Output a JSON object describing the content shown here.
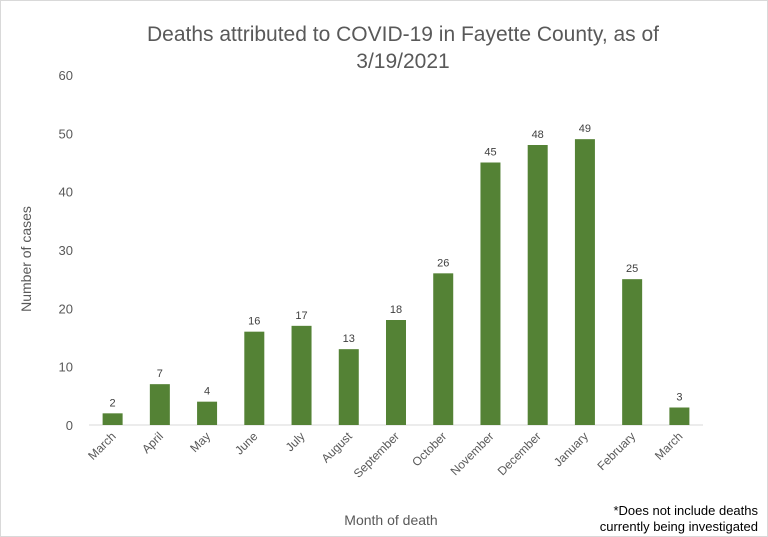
{
  "chart_data": {
    "type": "bar",
    "title_lines": [
      "Deaths attributed to COVID-19 in Fayette County, as of",
      "3/19/2021"
    ],
    "xlabel": "Month of death",
    "ylabel": "Number of cases",
    "categories": [
      "March",
      "April",
      "May",
      "June",
      "July",
      "August",
      "September",
      "October",
      "November",
      "December",
      "January",
      "February",
      "March"
    ],
    "values": [
      2,
      7,
      4,
      16,
      17,
      13,
      18,
      26,
      45,
      48,
      49,
      25,
      3
    ],
    "ylim": [
      0,
      60
    ],
    "yticks": [
      0,
      10,
      20,
      30,
      40,
      50,
      60
    ],
    "grid": false,
    "data_labels": true,
    "bar_color": "#548235",
    "footnote_lines": [
      "*Does not include deaths",
      "currently being investigated"
    ]
  }
}
